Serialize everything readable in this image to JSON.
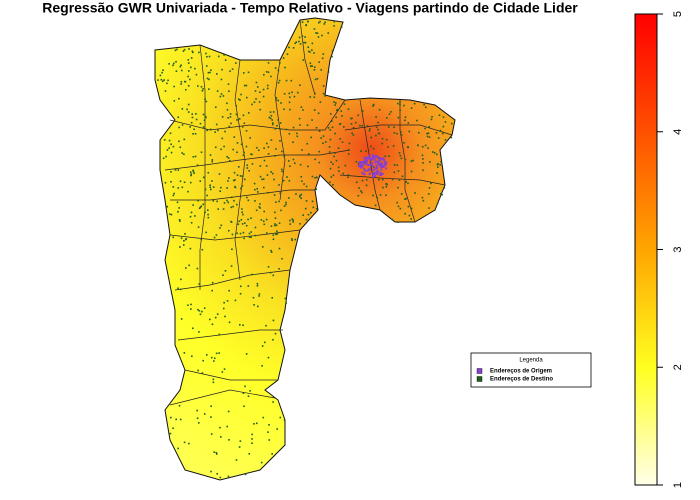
{
  "title": "Regressão GWR Univariada - Tempo Relativo - Viagens partindo de Cidade Lider",
  "legend": {
    "title": "Legenda",
    "items": [
      {
        "label": "Endereços de Origem",
        "color": "#8a3fd1"
      },
      {
        "label": "Endereços de Destino",
        "color": "#1f5e1f"
      }
    ]
  },
  "colorbar": {
    "lim": [
      1,
      5
    ],
    "ticks": [
      1,
      2,
      3,
      4,
      5
    ],
    "colors": [
      "#ffffe8",
      "#ffff20",
      "#ffa500",
      "#ff5000",
      "#ff0000"
    ]
  }
}
